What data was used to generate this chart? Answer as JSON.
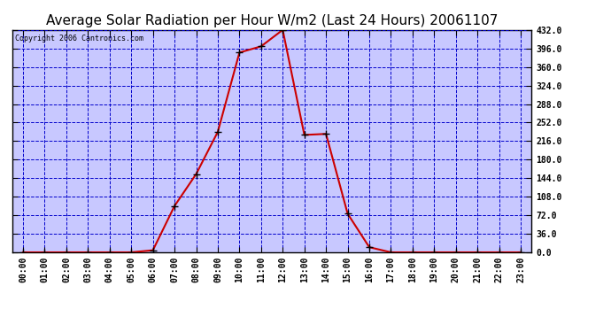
{
  "title": "Average Solar Radiation per Hour W/m2 (Last 24 Hours) 20061107",
  "copyright": "Copyright 2006 Cantronics.com",
  "hours": [
    0,
    1,
    2,
    3,
    4,
    5,
    6,
    7,
    8,
    9,
    10,
    11,
    12,
    13,
    14,
    15,
    16,
    17,
    18,
    19,
    20,
    21,
    22,
    23
  ],
  "values": [
    0,
    0,
    0,
    0,
    0,
    0,
    4,
    90,
    152,
    234,
    388,
    400,
    432,
    228,
    230,
    75,
    10,
    0,
    0,
    0,
    0,
    0,
    0,
    0
  ],
  "line_color": "#cc0000",
  "marker_color": "#000000",
  "bg_color": "#c8c8ff",
  "grid_color": "#0000cc",
  "border_color": "#000000",
  "fig_bg_color": "#ffffff",
  "ylim": [
    0,
    432
  ],
  "yticks": [
    0.0,
    36.0,
    72.0,
    108.0,
    144.0,
    180.0,
    216.0,
    252.0,
    288.0,
    324.0,
    360.0,
    396.0,
    432.0
  ],
  "title_fontsize": 11,
  "copyright_fontsize": 6,
  "tick_fontsize": 7
}
